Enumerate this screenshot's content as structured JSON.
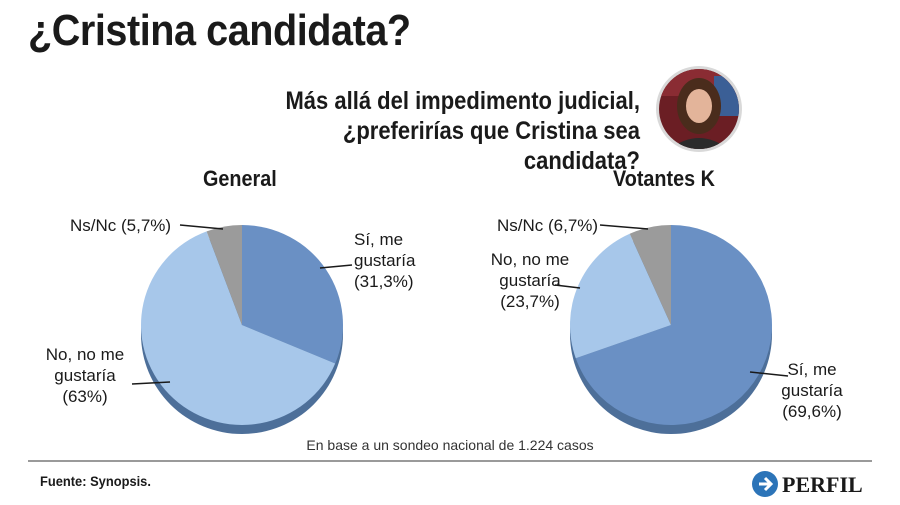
{
  "title": "¿Cristina candidata?",
  "question": {
    "line1": "Más allá del impedimento judicial,",
    "line2": "¿preferirías que Cristina sea candidata?"
  },
  "chart_data": [
    {
      "type": "pie",
      "title": "General",
      "slices": [
        {
          "label": "Sí, me gustaría",
          "value": 31.3,
          "color": "#6a90c4",
          "label_lines": [
            "Sí, me",
            "gustaría",
            "(31,3%)"
          ]
        },
        {
          "label": "No, no me gustaría",
          "value": 63.0,
          "color": "#a7c7ea",
          "label_lines": [
            "No, no me",
            "gustaría",
            "(63%)"
          ]
        },
        {
          "label": "Ns/Nc",
          "value": 5.7,
          "color": "#9b9b9b",
          "label_lines": [
            "Ns/Nc (5,7%)"
          ]
        }
      ]
    },
    {
      "type": "pie",
      "title": "Votantes K",
      "slices": [
        {
          "label": "Sí, me gustaría",
          "value": 69.6,
          "color": "#6a90c4",
          "label_lines": [
            "Sí, me",
            "gustaría",
            "(69,6%)"
          ]
        },
        {
          "label": "No, no me gustaría",
          "value": 23.7,
          "color": "#a7c7ea",
          "label_lines": [
            "No, no me",
            "gustaría",
            "",
            "(23,7%)"
          ]
        },
        {
          "label": "Ns/Nc",
          "value": 6.7,
          "color": "#9b9b9b",
          "label_lines": [
            "Ns/Nc (6,7%)"
          ]
        }
      ]
    }
  ],
  "footnote": "En base a un sondeo nacional de 1.224 casos",
  "source": "Fuente: Synopsis.",
  "logo_text": "PERFIL",
  "colors": {
    "side_shade": "#4d6f99",
    "leader": "#1a1a1a",
    "logo_blue": "#2c74b8"
  }
}
